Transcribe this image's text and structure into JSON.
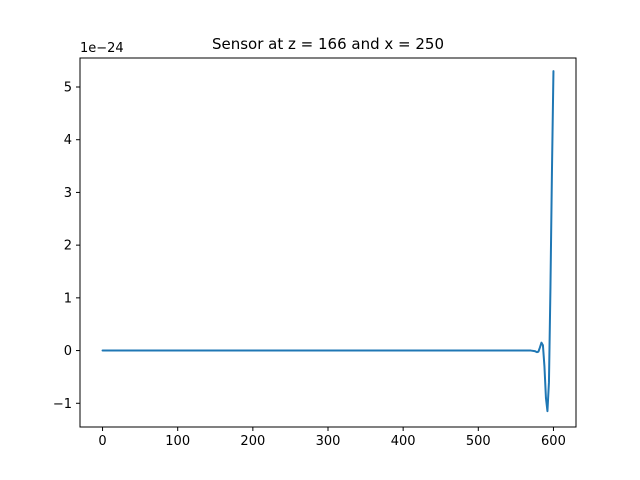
{
  "chart_data": {
    "type": "line",
    "title": "Sensor at z = 166 and x = 250",
    "xlabel": "",
    "ylabel": "",
    "y_offset_text": "1e−24",
    "y_scale_exponent": -24,
    "xlim": [
      -30,
      630
    ],
    "ylim": [
      -1.45,
      5.55
    ],
    "x_ticks": [
      0,
      100,
      200,
      300,
      400,
      500,
      600
    ],
    "x_tick_labels": [
      "0",
      "100",
      "200",
      "300",
      "400",
      "500",
      "600"
    ],
    "y_ticks": [
      -1,
      0,
      1,
      2,
      3,
      4,
      5
    ],
    "y_tick_labels": [
      "−1",
      "0",
      "1",
      "2",
      "3",
      "4",
      "5"
    ],
    "grid": false,
    "series": [
      {
        "color": "#1f77b4",
        "x": [
          0,
          100,
          200,
          300,
          400,
          500,
          560,
          570,
          575,
          578,
          580,
          582,
          584,
          586,
          588,
          590,
          592,
          594,
          596,
          598,
          600
        ],
        "y": [
          0,
          0,
          0,
          0,
          0,
          0,
          0,
          0,
          -0.01,
          -0.03,
          -0.02,
          0.06,
          0.15,
          0.1,
          -0.3,
          -0.9,
          -1.15,
          -0.6,
          1.2,
          3.4,
          5.3
        ]
      }
    ]
  }
}
